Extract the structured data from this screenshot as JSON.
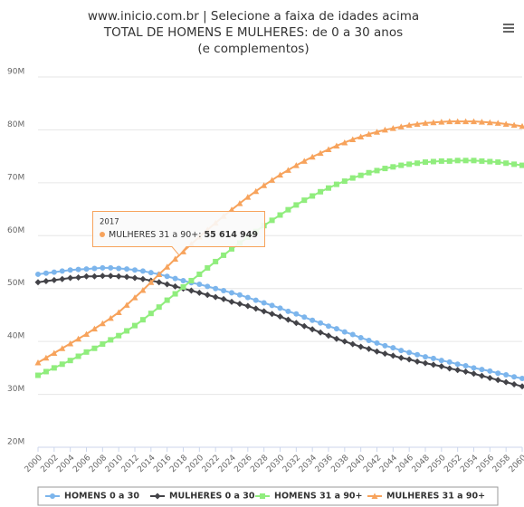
{
  "chart_data": {
    "type": "line",
    "title": [
      "www.inicio.com.br | Selecione a faixa de idades acima",
      "TOTAL DE HOMENS E MULHERES: de 0 a 30 anos",
      "(e complementos)"
    ],
    "x": [
      2000,
      2001,
      2002,
      2003,
      2004,
      2005,
      2006,
      2007,
      2008,
      2009,
      2010,
      2011,
      2012,
      2013,
      2014,
      2015,
      2016,
      2017,
      2018,
      2019,
      2020,
      2021,
      2022,
      2023,
      2024,
      2025,
      2026,
      2027,
      2028,
      2029,
      2030,
      2031,
      2032,
      2033,
      2034,
      2035,
      2036,
      2037,
      2038,
      2039,
      2040,
      2041,
      2042,
      2043,
      2044,
      2045,
      2046,
      2047,
      2048,
      2049,
      2050,
      2051,
      2052,
      2053,
      2054,
      2055,
      2056,
      2057,
      2058,
      2059,
      2060
    ],
    "xlim": [
      2000,
      2060
    ],
    "xticks": [
      2000,
      2002,
      2004,
      2006,
      2008,
      2010,
      2012,
      2014,
      2016,
      2018,
      2020,
      2022,
      2024,
      2026,
      2028,
      2030,
      2032,
      2034,
      2036,
      2038,
      2040,
      2042,
      2044,
      2046,
      2048,
      2050,
      2052,
      2054,
      2056,
      2058,
      2060
    ],
    "ylim": [
      20,
      90
    ],
    "yticks": [
      {
        "value": 20,
        "label": "20M"
      },
      {
        "value": 30,
        "label": "30M"
      },
      {
        "value": 40,
        "label": "40M"
      },
      {
        "value": 50,
        "label": "50M"
      },
      {
        "value": 60,
        "label": "60M"
      },
      {
        "value": 70,
        "label": "70M"
      },
      {
        "value": 80,
        "label": "80M"
      },
      {
        "value": 90,
        "label": "90M"
      }
    ],
    "grid": true,
    "legend": "bottom",
    "series": [
      {
        "name": "HOMENS 0 a 30",
        "color": "#7cb5ec",
        "marker": "circle",
        "values": [
          52.7,
          52.9,
          53.1,
          53.3,
          53.5,
          53.6,
          53.7,
          53.8,
          53.9,
          53.9,
          53.8,
          53.7,
          53.5,
          53.3,
          53.0,
          52.7,
          52.3,
          51.9,
          51.5,
          51.1,
          50.8,
          50.4,
          50.0,
          49.6,
          49.2,
          48.8,
          48.3,
          47.8,
          47.3,
          46.8,
          46.3,
          45.7,
          45.2,
          44.6,
          44.0,
          43.5,
          42.9,
          42.4,
          41.8,
          41.3,
          40.7,
          40.2,
          39.7,
          39.2,
          38.8,
          38.3,
          37.9,
          37.5,
          37.1,
          36.8,
          36.4,
          36.1,
          35.7,
          35.4,
          35.0,
          34.7,
          34.4,
          34.0,
          33.7,
          33.3,
          33.0
        ]
      },
      {
        "name": "MULHERES 0 a 30",
        "color": "#434348",
        "marker": "diamond",
        "values": [
          51.2,
          51.4,
          51.6,
          51.8,
          52.0,
          52.1,
          52.3,
          52.3,
          52.4,
          52.4,
          52.3,
          52.2,
          52.0,
          51.8,
          51.5,
          51.2,
          50.8,
          50.4,
          50.0,
          49.6,
          49.2,
          48.8,
          48.4,
          48.0,
          47.5,
          47.1,
          46.7,
          46.2,
          45.7,
          45.2,
          44.7,
          44.1,
          43.5,
          42.9,
          42.3,
          41.7,
          41.1,
          40.5,
          40.0,
          39.5,
          39.0,
          38.6,
          38.1,
          37.7,
          37.3,
          36.9,
          36.6,
          36.2,
          35.9,
          35.6,
          35.3,
          34.9,
          34.6,
          34.3,
          33.9,
          33.5,
          33.1,
          32.7,
          32.3,
          31.9,
          31.5
        ]
      },
      {
        "name": "HOMENS 31 a 90+",
        "color": "#90ed7d",
        "marker": "square",
        "values": [
          33.6,
          34.3,
          35.0,
          35.7,
          36.4,
          37.2,
          38.0,
          38.7,
          39.5,
          40.3,
          41.1,
          42.0,
          43.0,
          44.1,
          45.3,
          46.5,
          47.8,
          49.0,
          50.3,
          51.5,
          52.7,
          53.9,
          55.1,
          56.3,
          57.5,
          58.6,
          59.7,
          60.8,
          61.9,
          62.9,
          63.9,
          64.9,
          65.8,
          66.7,
          67.5,
          68.3,
          69.0,
          69.7,
          70.3,
          70.9,
          71.4,
          71.9,
          72.3,
          72.7,
          73.0,
          73.3,
          73.5,
          73.7,
          73.9,
          74.0,
          74.1,
          74.1,
          74.2,
          74.2,
          74.2,
          74.1,
          74.0,
          73.9,
          73.7,
          73.5,
          73.3
        ]
      },
      {
        "name": "MULHERES 31 a 90+",
        "color": "#f7a35c",
        "marker": "triangle",
        "values": [
          36.0,
          36.9,
          37.8,
          38.7,
          39.6,
          40.5,
          41.4,
          42.4,
          43.4,
          44.4,
          45.5,
          46.9,
          48.3,
          49.7,
          51.2,
          52.7,
          54.1,
          55.6,
          57.0,
          58.4,
          59.8,
          61.1,
          62.4,
          63.7,
          64.9,
          66.1,
          67.3,
          68.4,
          69.5,
          70.5,
          71.5,
          72.4,
          73.3,
          74.1,
          74.9,
          75.6,
          76.3,
          77.0,
          77.6,
          78.2,
          78.7,
          79.2,
          79.6,
          80.0,
          80.3,
          80.6,
          80.9,
          81.1,
          81.3,
          81.4,
          81.5,
          81.6,
          81.6,
          81.6,
          81.6,
          81.5,
          81.4,
          81.3,
          81.1,
          80.9,
          80.7
        ]
      }
    ],
    "tooltip": {
      "series": "MULHERES 31 a 90+:",
      "value": "55 614 949"
    }
  }
}
